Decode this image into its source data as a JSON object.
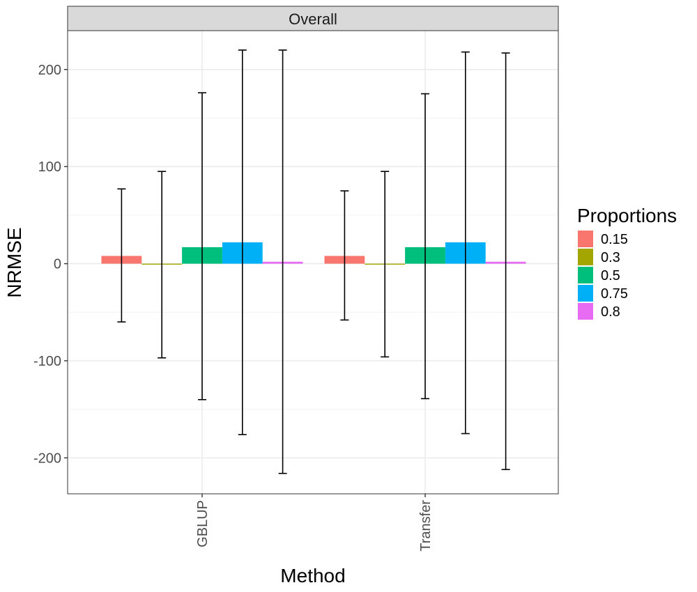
{
  "chart_data": {
    "type": "bar",
    "facet_title": "Overall",
    "categories": [
      "GBLUP",
      "Transfer"
    ],
    "xlabel": "Method",
    "ylabel": "NRMSE",
    "ylim": [
      -237,
      240
    ],
    "yticks": [
      -200,
      -100,
      0,
      100,
      200
    ],
    "grid": true,
    "legend": {
      "title": "Proportions",
      "position": "right"
    },
    "series": [
      {
        "name": "0.15",
        "color": "#F8766D",
        "values": [
          8,
          8
        ],
        "err_low": [
          -60,
          -58
        ],
        "err_high": [
          77,
          75
        ]
      },
      {
        "name": "0.3",
        "color": "#A3A500",
        "values": [
          -1,
          -1
        ],
        "err_low": [
          -97,
          -96
        ],
        "err_high": [
          95,
          95
        ]
      },
      {
        "name": "0.5",
        "color": "#00BF7D",
        "values": [
          17,
          17
        ],
        "err_low": [
          -140,
          -139
        ],
        "err_high": [
          176,
          175
        ]
      },
      {
        "name": "0.75",
        "color": "#00B0F6",
        "values": [
          22,
          22
        ],
        "err_low": [
          -176,
          -175
        ],
        "err_high": [
          220,
          218
        ]
      },
      {
        "name": "0.8",
        "color": "#E76BF3",
        "values": [
          2,
          2
        ],
        "err_low": [
          -216,
          -212
        ],
        "err_high": [
          220,
          217
        ]
      }
    ]
  }
}
